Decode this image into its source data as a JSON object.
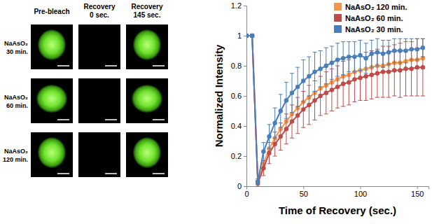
{
  "image_panel": {
    "columns": [
      [
        "Pre-bleach"
      ],
      [
        "Recovery",
        "0 sec."
      ],
      [
        "Recovery",
        "145 sec."
      ]
    ],
    "rows": [
      [
        "NaAsO₂",
        "30 min."
      ],
      [
        "NaAsO₂",
        "60 min."
      ],
      [
        "NaAsO₂",
        "120 min."
      ]
    ]
  },
  "chart_data": {
    "type": "line",
    "x_label": "Time of Recovery (sec.)",
    "y_label": "Normalized Intensity",
    "x": [
      0,
      5,
      10,
      15,
      20,
      25,
      30,
      35,
      40,
      45,
      50,
      55,
      60,
      65,
      70,
      75,
      80,
      85,
      90,
      95,
      100,
      105,
      110,
      115,
      120,
      125,
      130,
      135,
      140,
      145,
      150,
      155
    ],
    "xlim": [
      0,
      160
    ],
    "xticks": [
      0,
      50,
      100,
      150
    ],
    "ylim": [
      0,
      1.2
    ],
    "yticks": [
      0,
      0.2,
      0.4,
      0.6,
      0.8,
      1,
      1.2
    ],
    "grid": false,
    "legend": "top-right",
    "marker": "circle",
    "line_style": "solid",
    "series": [
      {
        "name": "NaAsO₂ 120 min.",
        "color": "#f79646",
        "values": [
          1.0,
          1.0,
          0.03,
          0.15,
          0.25,
          0.32,
          0.38,
          0.43,
          0.48,
          0.52,
          0.56,
          0.59,
          0.62,
          0.65,
          0.67,
          0.69,
          0.71,
          0.73,
          0.74,
          0.76,
          0.77,
          0.78,
          0.79,
          0.8,
          0.8,
          0.81,
          0.82,
          0.82,
          0.83,
          0.84,
          0.84,
          0.85
        ]
      },
      {
        "name": "NaAsO₂ 60 min.",
        "color": "#be4b48",
        "values": [
          1.0,
          1.0,
          0.02,
          0.12,
          0.22,
          0.28,
          0.33,
          0.38,
          0.43,
          0.47,
          0.51,
          0.54,
          0.57,
          0.6,
          0.62,
          0.64,
          0.66,
          0.68,
          0.69,
          0.71,
          0.72,
          0.73,
          0.74,
          0.75,
          0.76,
          0.76,
          0.77,
          0.77,
          0.78,
          0.78,
          0.79,
          0.79
        ],
        "errors": [
          0.01,
          0.01,
          0.02,
          0.05,
          0.07,
          0.08,
          0.09,
          0.1,
          0.11,
          0.12,
          0.12,
          0.13,
          0.13,
          0.13,
          0.14,
          0.14,
          0.14,
          0.15,
          0.15,
          0.15,
          0.15,
          0.16,
          0.16,
          0.16,
          0.17,
          0.17,
          0.17,
          0.18,
          0.18,
          0.18,
          0.19,
          0.19
        ]
      },
      {
        "name": "NaAsO₂ 30 min.",
        "color": "#4a7ebb",
        "values": [
          1.0,
          1.0,
          0.03,
          0.23,
          0.33,
          0.42,
          0.5,
          0.57,
          0.62,
          0.66,
          0.7,
          0.73,
          0.76,
          0.78,
          0.8,
          0.82,
          0.84,
          0.85,
          0.86,
          0.86,
          0.87,
          0.85,
          0.88,
          0.89,
          0.88,
          0.89,
          0.9,
          0.9,
          0.9,
          0.91,
          0.91,
          0.92
        ],
        "errors": [
          0.01,
          0.01,
          0.02,
          0.06,
          0.08,
          0.1,
          0.11,
          0.12,
          0.13,
          0.13,
          0.14,
          0.13,
          0.13,
          0.12,
          0.12,
          0.11,
          0.11,
          0.11,
          0.1,
          0.1,
          0.1,
          0.1,
          0.09,
          0.09,
          0.09,
          0.08,
          0.08,
          0.08,
          0.08,
          0.07,
          0.07,
          0.06
        ]
      }
    ]
  }
}
